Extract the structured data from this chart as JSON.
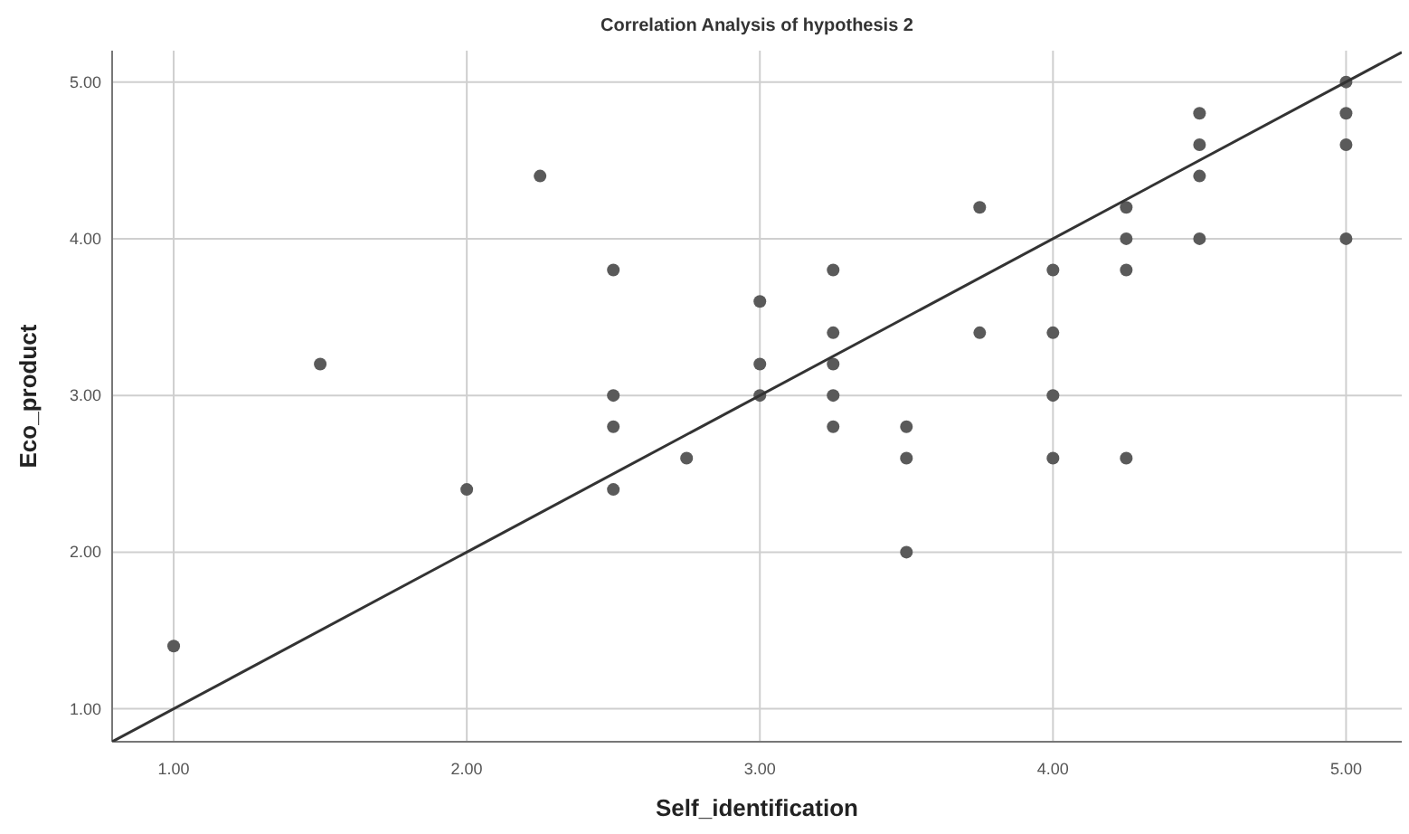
{
  "chart_data": {
    "type": "scatter",
    "title": "Correlation Analysis of hypothesis 2",
    "xlabel": "Self_identification",
    "ylabel": "Eco_product",
    "xlim": [
      0.79,
      5.19
    ],
    "ylim": [
      0.79,
      5.2
    ],
    "xticks": [
      {
        "value": 1,
        "label": "1.00"
      },
      {
        "value": 2,
        "label": "2.00"
      },
      {
        "value": 3,
        "label": "3.00"
      },
      {
        "value": 4,
        "label": "4.00"
      },
      {
        "value": 5,
        "label": "5.00"
      }
    ],
    "yticks": [
      {
        "value": 1,
        "label": "1.00"
      },
      {
        "value": 2,
        "label": "2.00"
      },
      {
        "value": 3,
        "label": "3.00"
      },
      {
        "value": 4,
        "label": "4.00"
      },
      {
        "value": 5,
        "label": "5.00"
      }
    ],
    "grid": true,
    "marker": "circle",
    "series": [
      {
        "color": "#5a5a5a",
        "x": [
          1,
          1.5,
          2,
          2.25,
          2.5,
          2.5,
          2.5,
          2.5,
          2.75,
          3,
          3,
          3,
          3.25,
          3.25,
          3.25,
          3.25,
          3.25,
          3.5,
          3.5,
          3.5,
          3.75,
          3.75,
          4,
          4,
          4,
          4,
          4.25,
          4.25,
          4.25,
          4.25,
          4.5,
          4.5,
          4.5,
          4.5,
          5,
          5,
          5,
          5
        ],
        "values": [
          1.4,
          3.2,
          2.4,
          4.4,
          3.8,
          3.0,
          2.8,
          2.4,
          2.6,
          3.6,
          3.2,
          3.0,
          3.8,
          3.4,
          3.2,
          3.0,
          2.8,
          2.8,
          2.6,
          2.0,
          4.2,
          3.4,
          3.8,
          3.4,
          3.0,
          2.6,
          4.2,
          4.0,
          3.8,
          2.6,
          4.8,
          4.6,
          4.4,
          4.0,
          5.0,
          4.8,
          4.6,
          4.0
        ]
      },
      {
        "type": "line",
        "marker": "none",
        "color": "#333333",
        "x": [
          0.79,
          5.19
        ],
        "values": [
          0.79,
          5.19
        ]
      }
    ]
  }
}
